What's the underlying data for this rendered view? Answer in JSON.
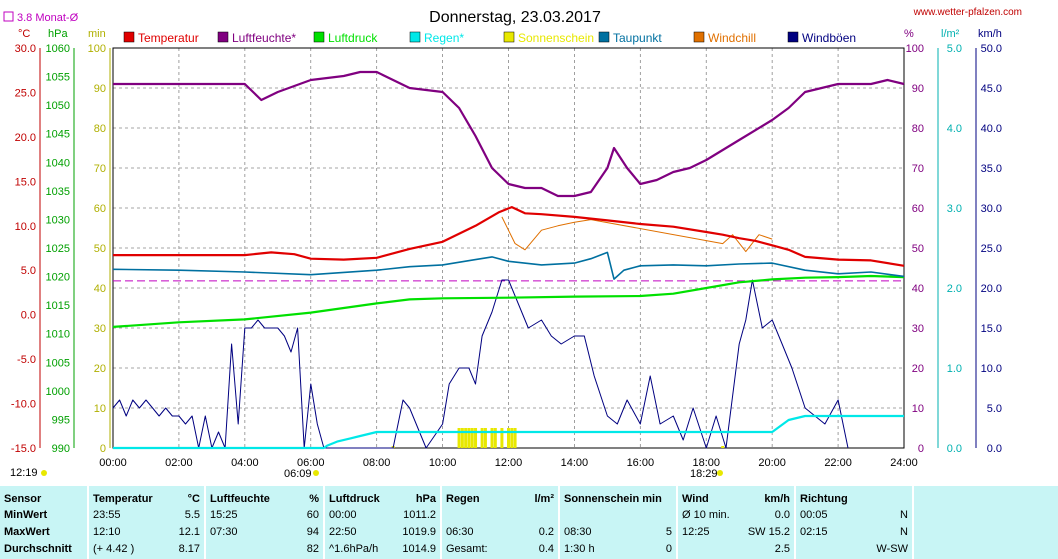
{
  "header": {
    "title": "Donnerstag, 23.03.2017",
    "url": "www.wetter-pfalzen.com",
    "monthly_avg": "3.8 Monat-Ø",
    "sunrise": "06:09",
    "sunset": "18:29",
    "sunrise_left": "12:19"
  },
  "legend": [
    {
      "label": "Temperatur",
      "color": "#e00000"
    },
    {
      "label": "Luftfeuchte*",
      "color": "#800080"
    },
    {
      "label": "Luftdruck",
      "color": "#00e000"
    },
    {
      "label": "Regen*",
      "color": "#00e8e8"
    },
    {
      "label": "Sonnenschein",
      "color": "#e8e800"
    },
    {
      "label": "Taupunkt",
      "color": "#0070a0"
    },
    {
      "label": "Windchill",
      "color": "#e07000"
    },
    {
      "label": "Windböen",
      "color": "#000080"
    }
  ],
  "axis_units": {
    "temp": "°C",
    "press": "hPa",
    "sun": "min",
    "hum": "%",
    "rain": "l/m²",
    "wind": "km/h"
  },
  "chart_data": {
    "type": "line",
    "title": "Donnerstag, 23.03.2017",
    "x_ticks": [
      "00:00",
      "02:00",
      "04:00",
      "06:00",
      "08:00",
      "10:00",
      "12:00",
      "14:00",
      "16:00",
      "18:00",
      "20:00",
      "22:00",
      "24:00"
    ],
    "axes": {
      "temp_c": {
        "range": [
          -15,
          30
        ],
        "ticks": [
          "30.0",
          "25.0",
          "20.0",
          "15.0",
          "10.0",
          "5.0",
          "0.0",
          "-5.0",
          "-10.0",
          "-15.0"
        ]
      },
      "pressure_hpa": {
        "range": [
          990,
          1060
        ],
        "ticks": [
          "1060",
          "1055",
          "1050",
          "1045",
          "1040",
          "1035",
          "1030",
          "1025",
          "1020",
          "1015",
          "1010",
          "1005",
          "1000",
          "995",
          "990"
        ]
      },
      "sun_min": {
        "range": [
          0,
          100
        ],
        "ticks": [
          "100",
          "90",
          "80",
          "70",
          "60",
          "50",
          "40",
          "30",
          "20",
          "10",
          "0"
        ]
      },
      "humidity_pct": {
        "range": [
          0,
          100
        ],
        "ticks": [
          "100",
          "90",
          "80",
          "70",
          "60",
          "50",
          "40",
          "30",
          "20",
          "10",
          "0"
        ]
      },
      "rain_lm2": {
        "range": [
          0,
          5
        ],
        "ticks": [
          "5.0",
          "4.0",
          "3.0",
          "2.0",
          "1.0",
          "0.0"
        ]
      },
      "wind_kmh": {
        "range": [
          0,
          50
        ],
        "ticks": [
          "50.0",
          "45.0",
          "40.0",
          "35.0",
          "30.0",
          "25.0",
          "20.0",
          "15.0",
          "10.0",
          "5.0",
          "0.0"
        ]
      }
    },
    "grid": true,
    "monthly_avg_temp": 3.8,
    "series": [
      {
        "name": "Temperatur",
        "unit": "°C",
        "x": [
          0,
          2,
          4,
          4.8,
          5.5,
          6,
          7,
          8,
          9,
          10,
          11,
          11.7,
          12.1,
          12.5,
          13,
          14,
          15,
          16,
          17,
          18,
          18.5,
          19,
          19.5,
          20,
          20.5,
          21,
          22,
          23,
          24
        ],
        "y": [
          6.7,
          6.7,
          6.7,
          7.0,
          6.8,
          6.3,
          6.2,
          6.4,
          7.4,
          8.2,
          10.0,
          11.5,
          12.1,
          11.4,
          11.3,
          11.0,
          10.6,
          10.2,
          9.9,
          9.3,
          9.0,
          8.6,
          8.3,
          7.8,
          7.3,
          6.5,
          6.2,
          6.1,
          5.5
        ]
      },
      {
        "name": "Luftfeuchte",
        "unit": "%",
        "x": [
          0,
          2,
          4,
          4.5,
          5,
          6,
          7,
          7.5,
          8,
          8.5,
          9,
          10,
          10.5,
          11,
          11.5,
          12,
          12.5,
          13,
          13.5,
          14,
          14.5,
          15,
          15.2,
          15.6,
          16,
          16.5,
          17,
          17.5,
          18,
          19,
          20,
          20.5,
          21,
          22,
          23,
          23.5,
          24
        ],
        "y": [
          91,
          91,
          91,
          87,
          89,
          92,
          93,
          94,
          94,
          92,
          90,
          89,
          85,
          78,
          70,
          66,
          65,
          65,
          63,
          63,
          64,
          70,
          75,
          70,
          66,
          67,
          69,
          70,
          72,
          77,
          82,
          85,
          89,
          91,
          91,
          92,
          91
        ]
      },
      {
        "name": "Luftdruck",
        "unit": "hPa",
        "x": [
          0,
          2,
          4,
          6,
          8,
          9,
          10,
          12,
          14,
          16,
          17,
          18,
          19,
          20,
          21,
          22,
          23,
          24
        ],
        "y": [
          1011.2,
          1012.0,
          1012.5,
          1013.7,
          1015.3,
          1016.0,
          1016.2,
          1016.3,
          1016.5,
          1016.6,
          1017.0,
          1018.0,
          1019.0,
          1019.5,
          1019.8,
          1019.9,
          1020.1,
          1019.9
        ]
      },
      {
        "name": "Taupunkt",
        "unit": "°C",
        "x": [
          0,
          2,
          4,
          6,
          8,
          9,
          10,
          11,
          11.5,
          12,
          13,
          14,
          14.5,
          15,
          15.2,
          15.5,
          16,
          17,
          18,
          19,
          20,
          21,
          22,
          23,
          24
        ],
        "y": [
          5.1,
          5.0,
          4.8,
          4.5,
          5.0,
          5.4,
          5.6,
          6.2,
          6.5,
          6.0,
          5.6,
          5.8,
          6.3,
          7.0,
          4.0,
          5.0,
          5.5,
          5.6,
          5.5,
          5.7,
          5.8,
          5.0,
          4.6,
          4.8,
          4.3
        ]
      },
      {
        "name": "Windchill",
        "unit": "°C",
        "x": [
          11.8,
          12.2,
          12.5,
          13,
          13.5,
          14,
          14.5,
          18.5,
          18.8,
          19.2,
          19.6,
          20
        ],
        "y": [
          11.0,
          8.0,
          7.3,
          9.5,
          10.0,
          10.4,
          10.7,
          8.0,
          9.0,
          7.1,
          9.0,
          8.5
        ]
      },
      {
        "name": "Windböen",
        "unit": "km/h",
        "x": [
          0,
          0.2,
          0.4,
          0.6,
          0.8,
          1,
          1.2,
          1.4,
          1.6,
          1.8,
          2,
          2.2,
          2.4,
          2.6,
          2.8,
          3,
          3.2,
          3.4,
          3.6,
          3.8,
          4,
          4.2,
          4.4,
          4.6,
          4.8,
          5,
          5.2,
          5.4,
          5.6,
          5.8,
          6,
          6.2,
          6.4,
          8.5,
          8.8,
          9,
          9.5,
          10,
          10.2,
          10.5,
          10.8,
          11,
          11.2,
          11.5,
          11.8,
          12,
          12.3,
          12.6,
          13,
          13.3,
          13.6,
          14,
          14.3,
          14.6,
          15,
          15.3,
          15.6,
          16,
          16.3,
          16.6,
          17,
          17.3,
          17.6,
          18,
          18.3,
          18.6,
          19,
          19.2,
          19.4,
          19.7,
          20,
          20.3,
          20.6,
          21,
          21.3,
          21.6,
          22,
          22.3
        ],
        "y": [
          5,
          6,
          4,
          6,
          5,
          6,
          5,
          4,
          5,
          4,
          4,
          3,
          4,
          0,
          4,
          0,
          2,
          0,
          13,
          3,
          15,
          15,
          16,
          15,
          15,
          15,
          14,
          12,
          15,
          0,
          8,
          3,
          0,
          0,
          6,
          5,
          0,
          3,
          8,
          10,
          10,
          8,
          14,
          17,
          21,
          21,
          18,
          15,
          16,
          14,
          13,
          14,
          14,
          9,
          4,
          3,
          6,
          3,
          9,
          3,
          4,
          1,
          5,
          0,
          4,
          0,
          13,
          16,
          21,
          15,
          16,
          13,
          10,
          5,
          4,
          3,
          6,
          0
        ]
      },
      {
        "name": "Regen",
        "unit": "l/m²",
        "x": [
          0,
          6.4,
          6.5,
          6.8,
          7.2,
          7.5,
          8,
          12,
          18,
          20,
          20.5,
          21,
          22,
          23,
          24
        ],
        "y": [
          0,
          0,
          0.03,
          0.08,
          0.12,
          0.15,
          0.2,
          0.2,
          0.2,
          0.2,
          0.35,
          0.4,
          0.4,
          0.4,
          0.4
        ]
      }
    ],
    "sunshine_bars": {
      "x": [
        10.5,
        10.6,
        10.7,
        10.8,
        10.9,
        11.0,
        11.2,
        11.3,
        11.5,
        11.6,
        11.8,
        12.0,
        12.1,
        12.2,
        8.5,
        18.5
      ],
      "y": [
        5,
        5,
        5,
        5,
        5,
        5,
        5,
        5,
        5,
        5,
        5,
        5,
        5,
        5,
        0.5,
        0.5
      ]
    }
  },
  "summary": {
    "sensor": {
      "h": "Sensor",
      "r1": "MinWert",
      "r2": "MaxWert",
      "r3": "Durchschnitt"
    },
    "temp": {
      "h": "Temperatur",
      "u": "°C",
      "r1a": "23:55",
      "r1b": "5.5",
      "r2a": "12:10",
      "r2b": "12.1",
      "r3a": "(+ 4.42 )",
      "r3b": "8.17"
    },
    "hum": {
      "h": "Luftfeuchte",
      "u": "%",
      "r1a": "15:25",
      "r1b": "60",
      "r2a": "07:30",
      "r2b": "94",
      "r3a": "",
      "r3b": "82"
    },
    "press": {
      "h": "Luftdruck",
      "u": "hPa",
      "r1a": "00:00",
      "r1b": "1011.2",
      "r2a": "22:50",
      "r2b": "1019.9",
      "r3a": "^1.6hPa/h",
      "r3b": "1014.9"
    },
    "rain": {
      "h": "Regen",
      "u": "l/m²",
      "r1a": "",
      "r1b": "",
      "r2a": "06:30",
      "r2b": "0.2",
      "r3a": "Gesamt:",
      "r3b": "0.4"
    },
    "sun": {
      "h": "Sonnenschein min",
      "u": "",
      "r1a": "",
      "r1b": "",
      "r2a": "08:30",
      "r2b": "5",
      "r3a": "1:30 h",
      "r3b": "0"
    },
    "wind": {
      "h": "Wind",
      "u": "km/h",
      "r1a": "Ø 10 min.",
      "r1b": "0.0",
      "r2a": "12:25",
      "r2b": "SW 15.2",
      "r3a": "",
      "r3b": "2.5"
    },
    "dir": {
      "h": "Richtung",
      "u": "",
      "r1a": "00:05",
      "r1b": "N",
      "r2a": "02:15",
      "r2b": "N",
      "r3a": "",
      "r3b": "W-SW"
    }
  }
}
